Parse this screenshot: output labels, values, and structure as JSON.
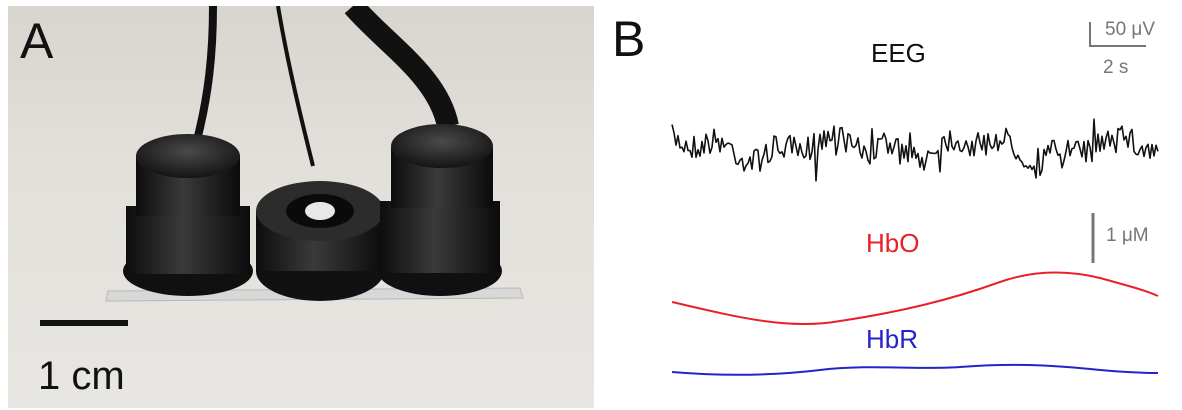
{
  "panel_a": {
    "label": "A",
    "scale_text": "1 cm"
  },
  "panel_b": {
    "label": "B",
    "eeg_label": "EEG",
    "hbo_label": "HbO",
    "hbr_label": "HbR",
    "eeg_scale_amplitude": "50 μV",
    "eeg_scale_time": "2 s",
    "hemo_scale": "1 μM"
  },
  "colors": {
    "eeg": "#111111",
    "hbo": "#e8202a",
    "hbr": "#2323cc",
    "scale": "#777777"
  }
}
